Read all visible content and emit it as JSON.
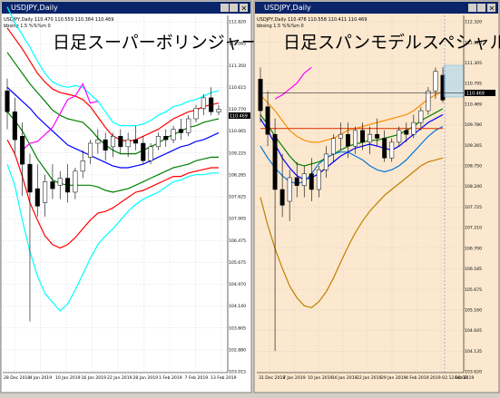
{
  "windows": [
    {
      "window_title": "USDJPY,Daily",
      "indicator_line": "USDJPY,Daily  110.470 110.559 110.384 110.469",
      "sub_line": "bbsing  1.5  %%%m  0",
      "overlay_title": "日足スーパーボリンジャー",
      "price_axis": [
        "112.820",
        "112.085",
        "111.350",
        "110.615",
        "110.770",
        "110.065",
        "109.225",
        "108.285",
        "107.625",
        "107.005",
        "106.475",
        "105.675",
        "104.970",
        "104.140",
        "103.605",
        "102.880",
        "103.015"
      ],
      "current_price": "110.469",
      "date_axis": [
        "28 Dec 2018",
        "4 Jan 2019",
        "10 Jan 2019",
        "16 Jan 2019",
        "22 Jan 2019",
        "28 Jan 2019",
        "1 Feb 2019",
        "7 Feb 2019",
        "13 Feb 2019"
      ]
    },
    {
      "window_title": "USDJPY,Daily",
      "indicator_line": "USDJPY,Daily  110.478 110.558 110.411 110.469",
      "sub_line": "bbsing  1.5  %%%m  0",
      "overlay_title": "日足スパンモデルスペシャル",
      "price_axis": [
        "112.320",
        "111.820",
        "111.305",
        "110.795",
        "110.469",
        "109.780",
        "109.265",
        "108.750",
        "108.240",
        "107.725",
        "107.210",
        "106.700",
        "106.185",
        "105.675",
        "105.160",
        "104.645",
        "104.135",
        "103.620"
      ],
      "current_price": "110.469",
      "date_axis": [
        "31 Dec 2018",
        "7 Jan 2019",
        "10 Jan 2019",
        "16 Jan 2019",
        "22 Jan 2019",
        "29 Jan 2019",
        "4 Feb 2019",
        "2019.02.12 00:00",
        "Feb 2019"
      ]
    }
  ],
  "chart_data": [
    {
      "type": "line",
      "title": "日足スーパーボリンジャー",
      "ylim": [
        103.015,
        112.82
      ],
      "candles": [
        {
          "o": 111.0,
          "h": 111.35,
          "c": 110.4,
          "l": 109.9
        },
        {
          "o": 110.4,
          "h": 110.8,
          "c": 109.6,
          "l": 109.2
        },
        {
          "o": 109.7,
          "h": 110.1,
          "c": 108.9,
          "l": 108.0
        },
        {
          "o": 108.9,
          "h": 109.2,
          "c": 108.1,
          "l": 104.4
        },
        {
          "o": 108.2,
          "h": 108.9,
          "c": 107.7,
          "l": 107.4
        },
        {
          "o": 107.8,
          "h": 108.6,
          "c": 108.4,
          "l": 107.4
        },
        {
          "o": 108.4,
          "h": 108.9,
          "c": 108.2,
          "l": 107.9
        },
        {
          "o": 108.3,
          "h": 108.7,
          "c": 108.5,
          "l": 107.9
        },
        {
          "o": 108.5,
          "h": 108.9,
          "c": 108.1,
          "l": 107.8
        },
        {
          "o": 108.1,
          "h": 108.8,
          "c": 108.7,
          "l": 107.9
        },
        {
          "o": 108.7,
          "h": 109.3,
          "c": 109.0,
          "l": 108.5
        },
        {
          "o": 109.1,
          "h": 109.6,
          "c": 109.5,
          "l": 108.9
        },
        {
          "o": 109.5,
          "h": 109.9,
          "c": 109.6,
          "l": 109.2
        },
        {
          "o": 109.6,
          "h": 109.8,
          "c": 109.3,
          "l": 109.0
        },
        {
          "o": 109.4,
          "h": 109.8,
          "c": 109.7,
          "l": 109.1
        },
        {
          "o": 109.7,
          "h": 109.9,
          "c": 109.4,
          "l": 109.2
        },
        {
          "o": 109.4,
          "h": 109.8,
          "c": 109.6,
          "l": 109.1
        },
        {
          "o": 109.6,
          "h": 110.0,
          "c": 109.5,
          "l": 109.3
        },
        {
          "o": 109.5,
          "h": 109.7,
          "c": 109.0,
          "l": 108.9
        },
        {
          "o": 109.0,
          "h": 109.5,
          "c": 109.4,
          "l": 108.9
        },
        {
          "o": 109.4,
          "h": 109.8,
          "c": 109.7,
          "l": 109.3
        },
        {
          "o": 109.7,
          "h": 109.9,
          "c": 109.6,
          "l": 109.4
        },
        {
          "o": 109.6,
          "h": 110.0,
          "c": 109.9,
          "l": 109.5
        },
        {
          "o": 109.9,
          "h": 110.2,
          "c": 109.8,
          "l": 109.6
        },
        {
          "o": 109.8,
          "h": 110.3,
          "c": 110.2,
          "l": 109.7
        },
        {
          "o": 110.2,
          "h": 110.6,
          "c": 110.5,
          "l": 110.1
        },
        {
          "o": 110.5,
          "h": 110.9,
          "c": 110.8,
          "l": 110.3
        },
        {
          "o": 110.8,
          "h": 111.1,
          "c": 110.4,
          "l": 110.3
        },
        {
          "o": 110.4,
          "h": 110.6,
          "c": 110.47,
          "l": 110.3
        }
      ],
      "series": [
        {
          "name": "",
          "color": "#00ffff",
          "values": [
            113.4,
            112.95,
            112.6,
            112.25,
            111.85,
            111.5,
            111.25,
            111.15,
            111.1,
            111.15,
            111.1,
            110.9,
            110.7,
            110.4,
            110.1,
            110.0,
            110.0,
            110.0,
            110.05,
            110.15,
            110.3,
            110.4,
            110.55,
            110.6,
            110.7,
            110.75,
            110.85,
            110.95,
            111.0
          ]
        },
        {
          "name": "",
          "color": "#ff0000",
          "values": [
            112.8,
            112.5,
            112.2,
            111.85,
            111.5,
            111.25,
            111.05,
            110.95,
            110.9,
            110.85,
            110.75,
            110.55,
            110.25,
            109.95,
            109.7,
            109.6,
            109.55,
            109.6,
            109.7,
            109.8,
            109.9,
            110.05,
            110.2,
            110.3,
            110.4,
            110.45,
            110.55,
            110.6,
            110.65
          ]
        },
        {
          "name": "",
          "color": "#008000",
          "values": [
            112.1,
            111.8,
            111.5,
            111.2,
            110.95,
            110.7,
            110.45,
            110.3,
            110.2,
            110.15,
            110.1,
            109.9,
            109.65,
            109.45,
            109.3,
            109.2,
            109.2,
            109.2,
            109.3,
            109.4,
            109.5,
            109.65,
            109.75,
            109.85,
            109.95,
            110.0,
            110.1,
            110.15,
            110.2
          ]
        },
        {
          "name": "",
          "color": "#0000ff",
          "values": [
            111.1,
            110.9,
            110.7,
            110.5,
            110.25,
            110.05,
            109.85,
            109.65,
            109.45,
            109.35,
            109.25,
            109.15,
            109.05,
            108.95,
            108.85,
            108.8,
            108.8,
            108.85,
            108.9,
            109.0,
            109.1,
            109.2,
            109.3,
            109.4,
            109.45,
            109.55,
            109.6,
            109.7,
            109.8
          ]
        },
        {
          "name": "",
          "color": "#008000",
          "values": [
            110.4,
            110.15,
            109.85,
            109.45,
            109.05,
            108.75,
            108.45,
            108.35,
            108.3,
            108.3,
            108.3,
            108.3,
            108.25,
            108.15,
            108.1,
            108.15,
            108.2,
            108.3,
            108.4,
            108.5,
            108.6,
            108.7,
            108.8,
            108.85,
            108.9,
            109.0,
            109.05,
            109.1,
            109.1
          ]
        },
        {
          "name": "",
          "color": "#ff0000",
          "values": [
            109.6,
            109.2,
            108.55,
            107.8,
            107.3,
            106.85,
            106.6,
            106.5,
            106.6,
            106.8,
            107.05,
            107.3,
            107.5,
            107.55,
            107.65,
            107.8,
            107.95,
            108.1,
            108.15,
            108.25,
            108.35,
            108.45,
            108.55,
            108.55,
            108.65,
            108.7,
            108.75,
            108.8,
            108.8
          ]
        },
        {
          "name": "",
          "color": "#00ffff",
          "values": [
            108.9,
            108.3,
            107.3,
            106.4,
            105.7,
            105.2,
            104.95,
            104.7,
            104.9,
            105.3,
            105.75,
            106.2,
            106.6,
            106.85,
            107.05,
            107.3,
            107.55,
            107.75,
            107.9,
            108.0,
            108.1,
            108.25,
            108.4,
            108.45,
            108.55,
            108.6,
            108.6,
            108.65,
            108.65
          ]
        },
        {
          "name": "",
          "color": "#ff00ff",
          "values": [
            null,
            null,
            109.3,
            109.5,
            109.55,
            109.75,
            109.95,
            110.35,
            110.75,
            110.85,
            111.2,
            110.65,
            110.7,
            null,
            null,
            null,
            null,
            null,
            null,
            null,
            null,
            null,
            null,
            null,
            null,
            null,
            null,
            null,
            null
          ]
        }
      ]
    },
    {
      "type": "line",
      "title": "日足スパンモデルスペシャル",
      "ylim": [
        103.62,
        112.32
      ],
      "candles": [
        {
          "o": 111.0,
          "h": 111.3,
          "c": 110.2,
          "l": 109.9
        },
        {
          "o": 110.3,
          "h": 110.7,
          "c": 109.6,
          "l": 109.3
        },
        {
          "o": 109.6,
          "h": 110.0,
          "c": 108.2,
          "l": 104.1
        },
        {
          "o": 108.2,
          "h": 109.1,
          "c": 107.8,
          "l": 107.5
        },
        {
          "o": 107.9,
          "h": 108.7,
          "c": 108.5,
          "l": 107.4
        },
        {
          "o": 108.5,
          "h": 108.9,
          "c": 108.3,
          "l": 108.0
        },
        {
          "o": 108.3,
          "h": 108.8,
          "c": 108.6,
          "l": 108.0
        },
        {
          "o": 108.6,
          "h": 109.0,
          "c": 108.2,
          "l": 107.9
        },
        {
          "o": 108.2,
          "h": 108.8,
          "c": 108.7,
          "l": 108.0
        },
        {
          "o": 108.7,
          "h": 109.3,
          "c": 109.1,
          "l": 108.5
        },
        {
          "o": 109.1,
          "h": 109.6,
          "c": 109.5,
          "l": 108.9
        },
        {
          "o": 109.5,
          "h": 109.9,
          "c": 109.6,
          "l": 109.2
        },
        {
          "o": 109.6,
          "h": 109.9,
          "c": 109.3,
          "l": 109.0
        },
        {
          "o": 109.3,
          "h": 109.8,
          "c": 109.7,
          "l": 109.1
        },
        {
          "o": 109.7,
          "h": 109.9,
          "c": 109.4,
          "l": 109.2
        },
        {
          "o": 109.4,
          "h": 109.8,
          "c": 109.6,
          "l": 109.1
        },
        {
          "o": 109.6,
          "h": 110.0,
          "c": 109.5,
          "l": 109.3
        },
        {
          "o": 109.5,
          "h": 109.7,
          "c": 109.0,
          "l": 108.9
        },
        {
          "o": 109.0,
          "h": 109.5,
          "c": 109.4,
          "l": 108.9
        },
        {
          "o": 109.4,
          "h": 109.8,
          "c": 109.7,
          "l": 109.3
        },
        {
          "o": 109.7,
          "h": 109.9,
          "c": 109.6,
          "l": 109.4
        },
        {
          "o": 109.6,
          "h": 110.1,
          "c": 109.9,
          "l": 109.5
        },
        {
          "o": 109.9,
          "h": 110.3,
          "c": 110.2,
          "l": 109.7
        },
        {
          "o": 110.2,
          "h": 110.8,
          "c": 110.7,
          "l": 110.1
        },
        {
          "o": 110.7,
          "h": 111.3,
          "c": 111.2,
          "l": 110.5
        },
        {
          "o": 111.1,
          "h": 111.3,
          "c": 110.47,
          "l": 110.4
        }
      ],
      "series": [
        {
          "name": "",
          "color": "#ff8c00",
          "values": [
            110.6,
            110.4,
            110.2,
            109.95,
            109.7,
            109.55,
            109.45,
            109.4,
            109.4,
            109.45,
            109.5,
            109.6,
            109.7,
            109.75,
            109.8,
            109.85,
            109.9,
            109.95,
            110.0,
            110.05,
            110.1,
            110.2,
            110.35,
            110.5,
            110.6,
            110.7
          ]
        },
        {
          "name": "",
          "color": "#008000",
          "values": [
            110.1,
            109.85,
            109.55,
            109.3,
            109.05,
            108.85,
            108.8,
            108.85,
            108.9,
            109.0,
            109.1,
            109.2,
            109.3,
            109.35,
            109.4,
            109.45,
            109.45,
            109.5,
            109.55,
            109.6,
            109.7,
            109.8,
            109.95,
            110.05,
            110.15,
            110.25
          ]
        },
        {
          "name": "",
          "color": "#0000ff",
          "values": [
            110.0,
            109.7,
            109.35,
            109.0,
            108.75,
            108.55,
            108.45,
            108.5,
            108.6,
            108.75,
            108.9,
            109.05,
            109.15,
            109.25,
            109.3,
            109.35,
            109.3,
            109.25,
            109.2,
            109.3,
            109.45,
            109.6,
            109.75,
            109.9,
            110.0,
            110.1
          ]
        },
        {
          "name": "",
          "color": "#0077dd",
          "values": [
            109.3,
            109.0,
            108.75,
            108.55,
            108.4,
            108.35,
            108.4,
            108.6,
            108.85,
            109.0,
            109.1,
            109.15,
            109.15,
            109.05,
            108.95,
            108.8,
            108.7,
            108.65,
            108.7,
            108.8,
            108.95,
            109.15,
            109.35,
            109.55,
            109.7,
            109.8
          ]
        },
        {
          "name": "",
          "color": "#e04010",
          "values": [
            109.75,
            109.75,
            109.75,
            109.75,
            109.75,
            109.75,
            109.75,
            109.75,
            109.75,
            109.75,
            109.75,
            109.75,
            109.75,
            109.75,
            109.75,
            109.75,
            109.75,
            109.75,
            109.75,
            109.75,
            109.75,
            109.75,
            109.75,
            109.75,
            109.75,
            109.75
          ]
        },
        {
          "name": "",
          "color": "#c08000",
          "values": [
            108.0,
            107.3,
            106.7,
            106.2,
            105.75,
            105.45,
            105.25,
            105.2,
            105.35,
            105.6,
            105.95,
            106.35,
            106.75,
            107.1,
            107.4,
            107.65,
            107.85,
            108.05,
            108.2,
            108.35,
            108.5,
            108.65,
            108.8,
            108.9,
            108.95,
            109.0
          ]
        },
        {
          "name": "",
          "color": "#ff00ff",
          "values": [
            null,
            null,
            110.5,
            110.6,
            110.75,
            110.9,
            111.15,
            111.3,
            null,
            null,
            null,
            null,
            null,
            null,
            null,
            null,
            null,
            null,
            null,
            null,
            null,
            null,
            null,
            null,
            null,
            null
          ]
        }
      ]
    }
  ]
}
